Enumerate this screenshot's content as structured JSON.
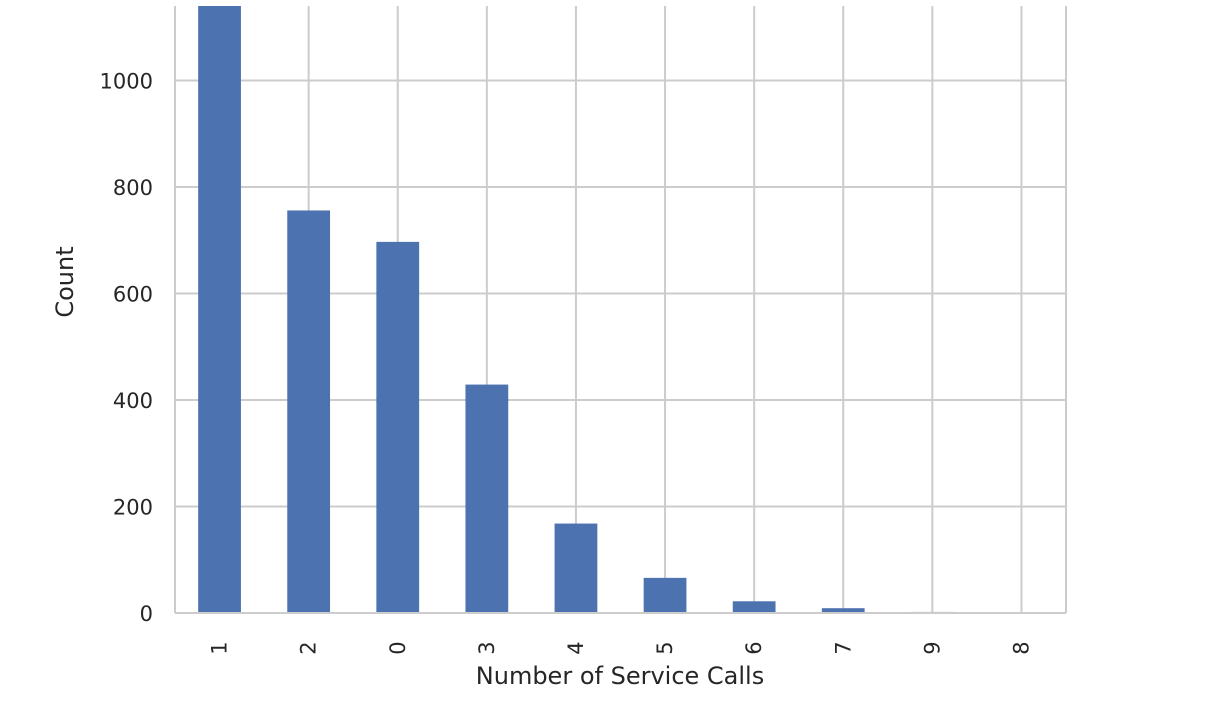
{
  "chart_data": {
    "type": "bar",
    "categories": [
      "1",
      "2",
      "0",
      "3",
      "4",
      "5",
      "6",
      "7",
      "9",
      "8"
    ],
    "values": [
      1181,
      756,
      697,
      429,
      168,
      66,
      22,
      9,
      2,
      1
    ],
    "title": "",
    "xlabel": "Number of Service Calls",
    "ylabel": "Count",
    "ylim": [
      0,
      1140
    ],
    "yticks": [
      0,
      200,
      400,
      600,
      800,
      1000
    ],
    "xtick_rotation": "vertical",
    "grid": true,
    "bar_color": "#4c72b0",
    "grid_color": "#cccccc",
    "spine_color": "#cccccc"
  }
}
